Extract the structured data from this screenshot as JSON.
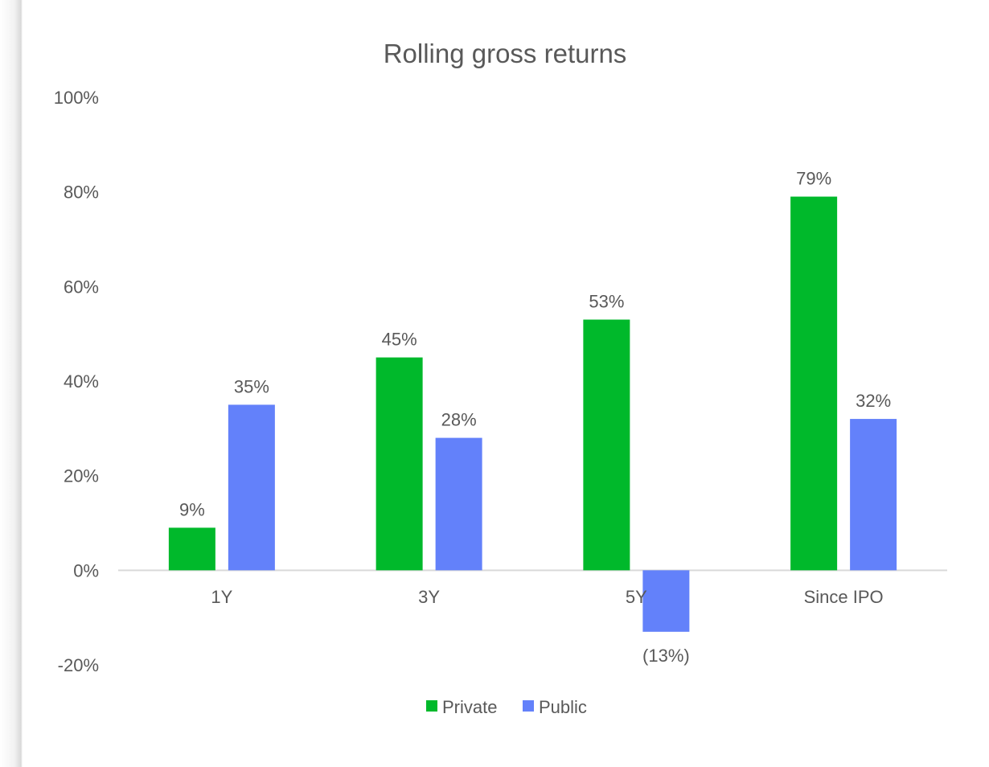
{
  "chart_data": {
    "type": "bar",
    "title": "Rolling gross returns",
    "categories": [
      "1Y",
      "3Y",
      "5Y",
      "Since IPO"
    ],
    "series": [
      {
        "name": "Private",
        "values": [
          9,
          45,
          53,
          79
        ],
        "labels": [
          "9%",
          "45%",
          "53%",
          "79%"
        ],
        "color": "#00b92b"
      },
      {
        "name": "Public",
        "values": [
          35,
          28,
          -13,
          32
        ],
        "labels": [
          "35%",
          "28%",
          "(13%)",
          "32%"
        ],
        "color": "#6381fa"
      }
    ],
    "y_ticks": [
      {
        "value": 100,
        "label": "100%"
      },
      {
        "value": 80,
        "label": "80%"
      },
      {
        "value": 60,
        "label": "60%"
      },
      {
        "value": 40,
        "label": "40%"
      },
      {
        "value": 20,
        "label": "20%"
      },
      {
        "value": 0,
        "label": "0%"
      },
      {
        "value": -20,
        "label": "-20%"
      }
    ],
    "ylim": [
      -20,
      100
    ],
    "xlabel": "",
    "ylabel": "",
    "grid": false,
    "legend": "bottom",
    "colors": {
      "axis": "#d9d9d9",
      "text": "#595959",
      "title": "#595959"
    }
  }
}
